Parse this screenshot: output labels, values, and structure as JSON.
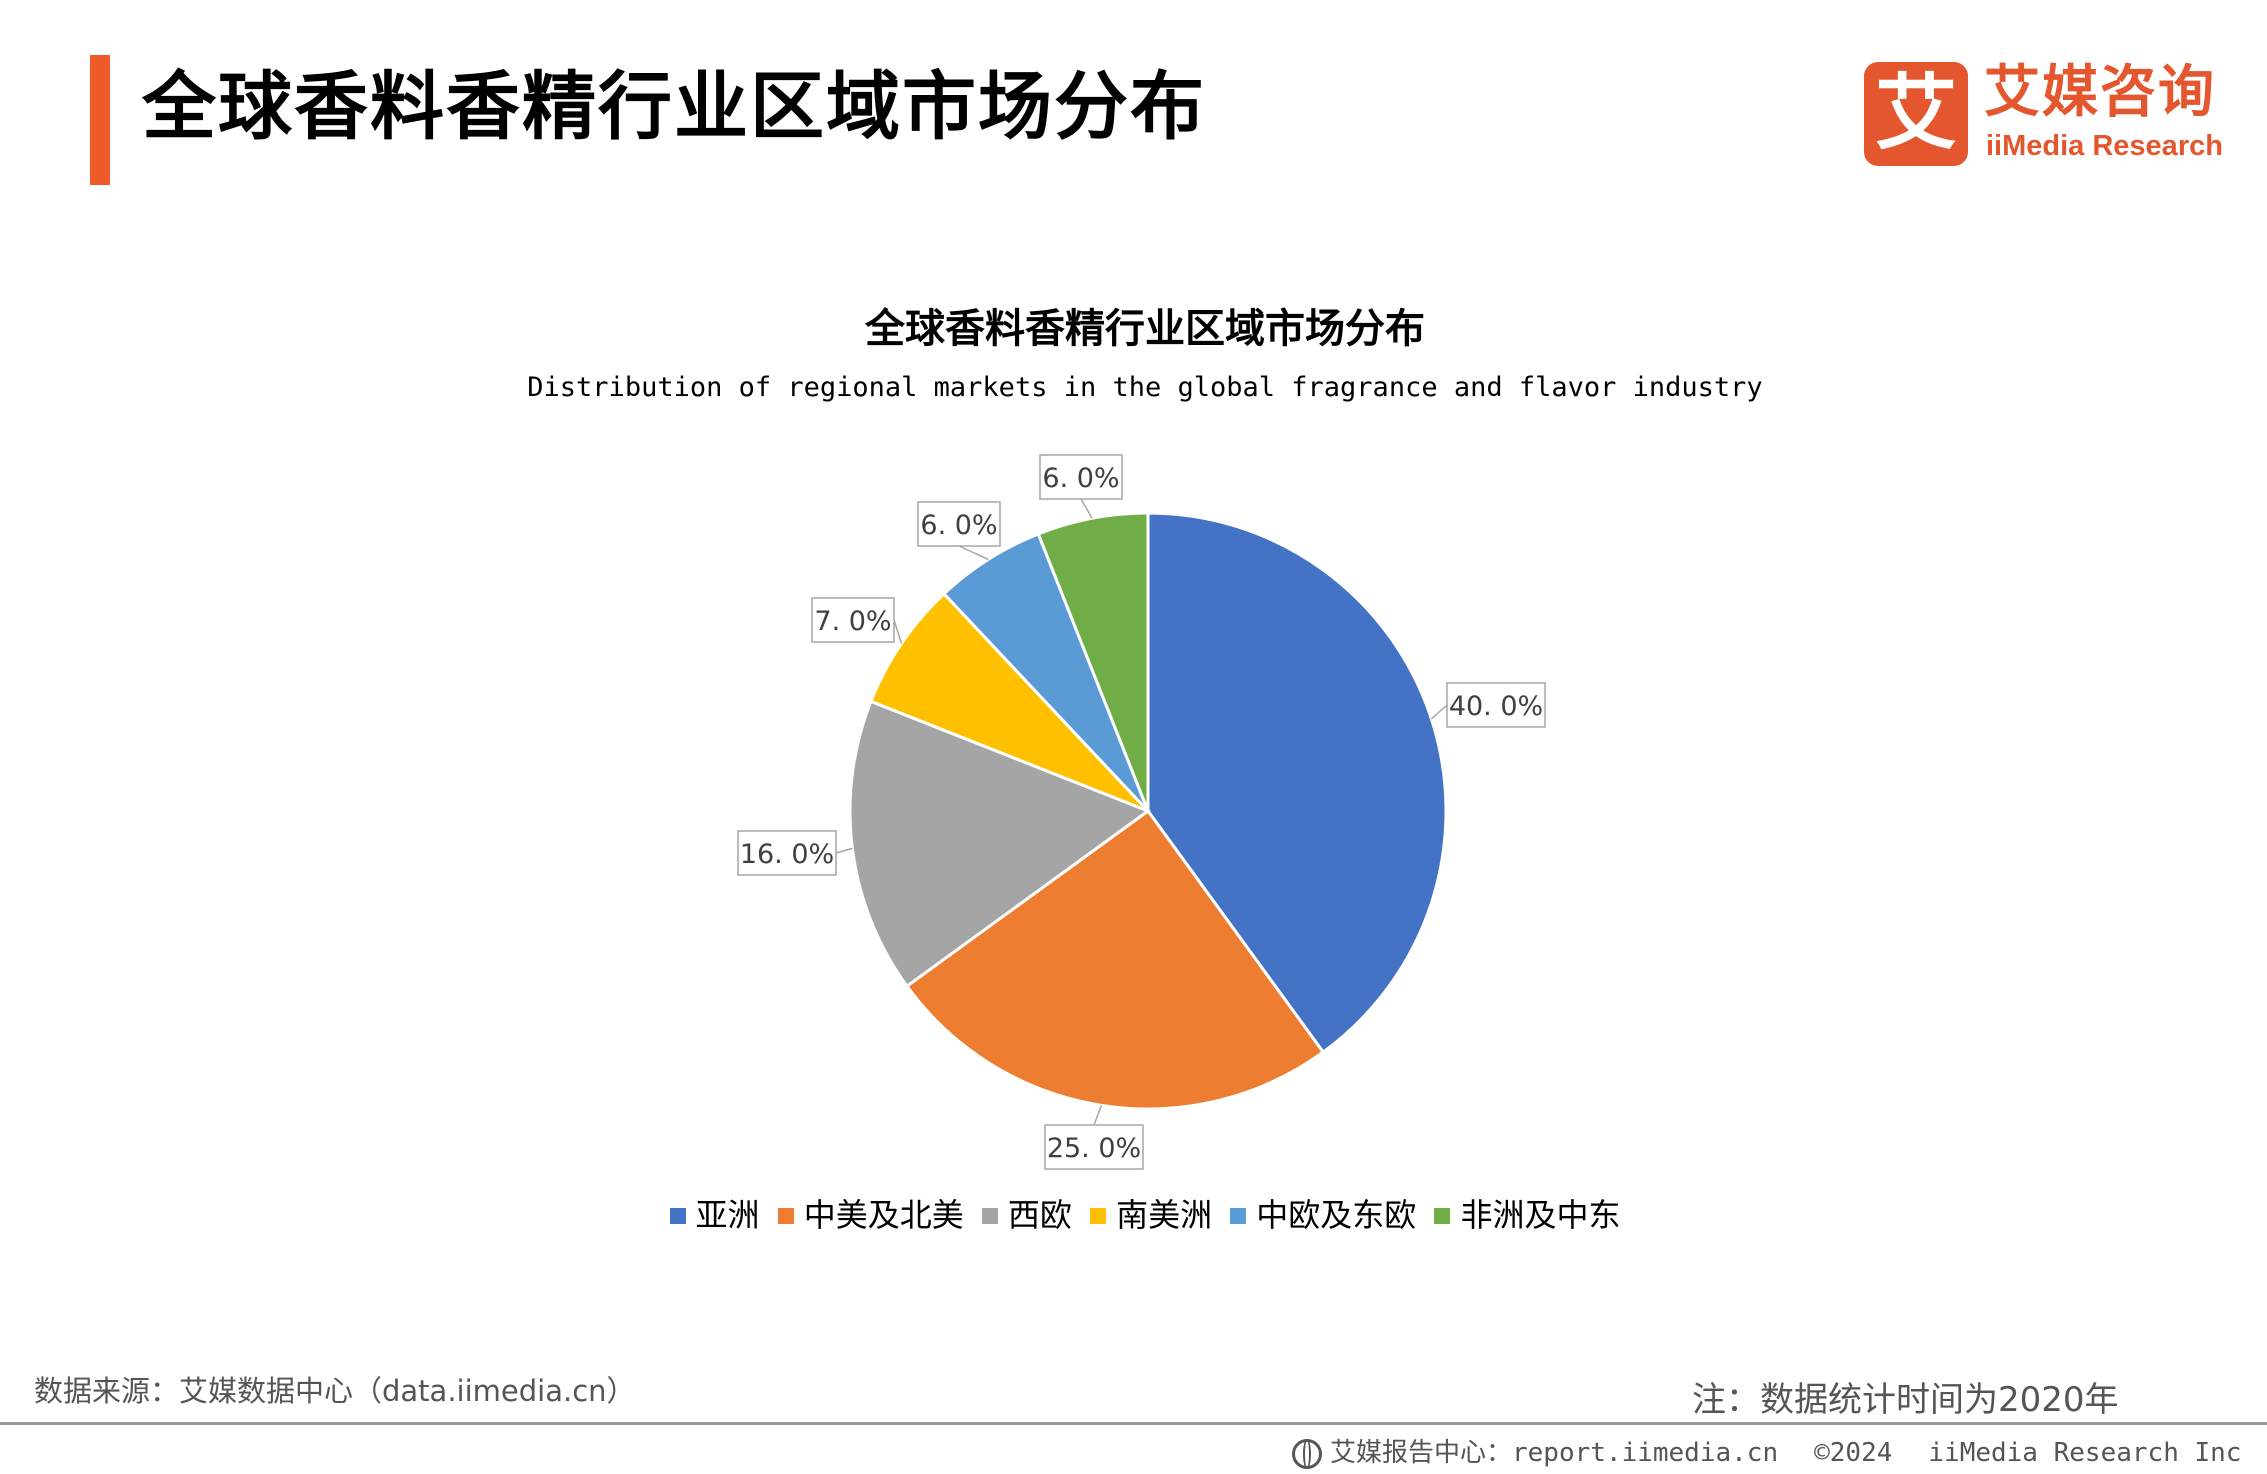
{
  "header": {
    "title": "全球香料香精行业区域市场分布",
    "logo_mark": "艾",
    "logo_cn": "艾媒咨询",
    "logo_en": "iiMedia Research"
  },
  "chart_data": {
    "type": "pie",
    "title": "全球香料香精行业区域市场分布",
    "subtitle": "Distribution of regional markets in the global fragrance and flavor industry",
    "categories": [
      "亚洲",
      "中美及北美",
      "西欧",
      "南美洲",
      "中欧及东欧",
      "非洲及中东"
    ],
    "values": [
      40.0,
      25.0,
      16.0,
      7.0,
      6.0,
      6.0
    ],
    "labels": [
      "40. 0%",
      "25. 0%",
      "16. 0%",
      "7. 0%",
      "6. 0%",
      "6. 0%"
    ],
    "colors": [
      "#4472c4",
      "#ed7d31",
      "#a5a5a5",
      "#ffc000",
      "#5b9bd5",
      "#70ad47"
    ],
    "legend_position": "bottom",
    "start": "12 o'clock",
    "direction": "clockwise"
  },
  "footer": {
    "source": "数据来源：艾媒数据中心（data.iimedia.cn）",
    "note": "注：数据统计时间为2020年",
    "site": "艾媒报告中心：report.iimedia.cn",
    "copyright": "©2024",
    "company": "iiMedia Research  Inc",
    "globe_icon": "globe-icon"
  }
}
